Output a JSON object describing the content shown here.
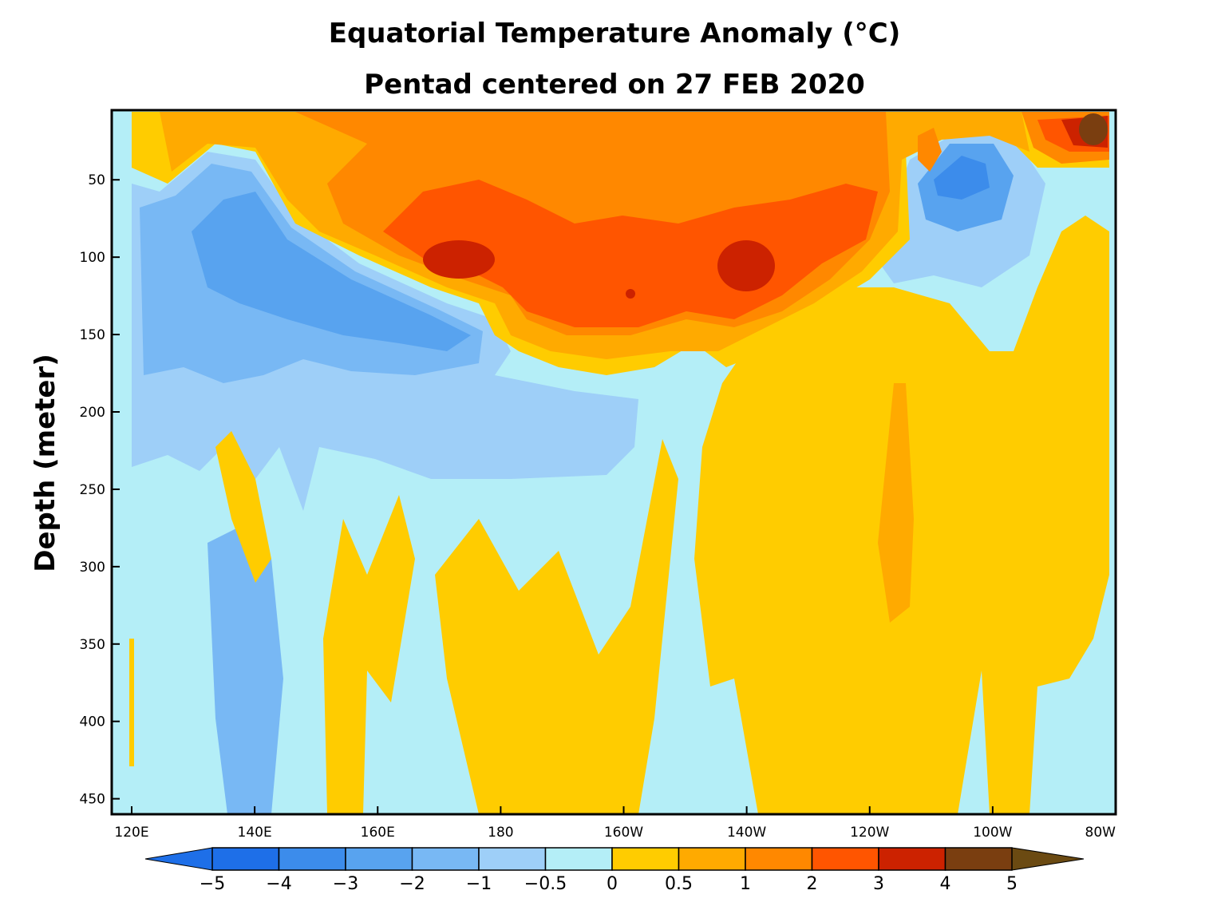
{
  "chart_data": {
    "type": "heatmap",
    "title": "Equatorial Temperature Anomaly (°C)",
    "subtitle": "Pentad centered on 27 FEB 2020",
    "xlabel": "",
    "ylabel": "Depth (meter)",
    "x_ticks": [
      "120E",
      "140E",
      "160E",
      "180",
      "160W",
      "140W",
      "120W",
      "100W",
      "80W"
    ],
    "x_range_deg_east": [
      120,
      280
    ],
    "y_ticks": [
      50,
      100,
      150,
      200,
      250,
      300,
      350,
      400,
      450
    ],
    "y_range": [
      5,
      460
    ],
    "colorbar": {
      "labels": [
        "−5",
        "−4",
        "−3",
        "−2",
        "−1",
        "−0.5",
        "0",
        "0.5",
        "1",
        "2",
        "3",
        "4",
        "5"
      ],
      "colors": [
        "#1e6fe8",
        "#3c8ceb",
        "#58a3ef",
        "#78b8f4",
        "#9ecff8",
        "#b4eef7",
        "#ffcc00",
        "#ffaa00",
        "#ff8800",
        "#ff5500",
        "#cc2200",
        "#7a3e10"
      ],
      "under_color": "#1e6fe8",
      "over_color": "#6b4a12"
    },
    "regions": [
      {
        "level": "0 to 0.5",
        "description": "broad warm anomaly, central-eastern Pacific below 170 m"
      },
      {
        "level": "2 to 3",
        "description": "warm core near 170E, 100 m depth"
      },
      {
        "level": "3 to 4",
        "description": "warm core near 140W, 100 m depth"
      },
      {
        "level": "-3 to -4",
        "description": "cold tongue 140E–175E, 80–150 m"
      },
      {
        "level": "-3 to -4",
        "description": "cold pool near 105W, 40–70 m"
      },
      {
        "level": "4 to 5",
        "description": "warm surface near 82W"
      }
    ]
  }
}
